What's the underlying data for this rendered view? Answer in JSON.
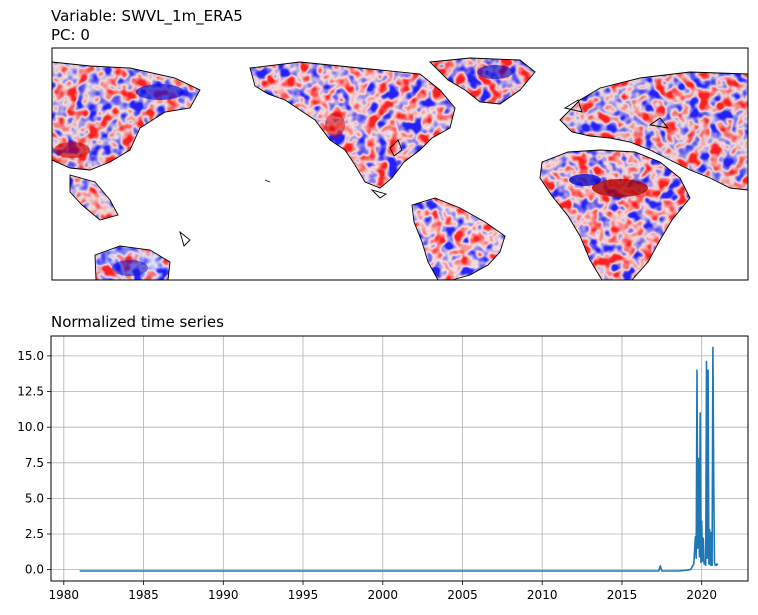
{
  "map_panel": {
    "title_variable": "Variable: SWVL_1m_ERA5",
    "title_pc": "PC: 0",
    "colormap": "bwr",
    "colors": {
      "negative": "#0000ff",
      "neutral": "#ffffff",
      "positive": "#ff0000",
      "coastline": "#000000"
    }
  },
  "chart_data": {
    "type": "line",
    "title": "Normalized time series",
    "xlabel": "",
    "ylabel": "",
    "xlim": [
      1979.2,
      2022.9
    ],
    "ylim": [
      -0.8,
      16.4
    ],
    "grid": true,
    "x_ticks": [
      1980,
      1985,
      1990,
      1995,
      2000,
      2005,
      2010,
      2015,
      2020
    ],
    "x_tick_labels": [
      "1980",
      "1985",
      "1990",
      "1995",
      "2000",
      "2005",
      "2010",
      "2015",
      "2020"
    ],
    "y_ticks": [
      0.0,
      2.5,
      5.0,
      7.5,
      10.0,
      12.5,
      15.0
    ],
    "y_tick_labels": [
      "0.0",
      "2.5",
      "5.0",
      "7.5",
      "10.0",
      "12.5",
      "15.0"
    ],
    "series": [
      {
        "color": "#1f77b4",
        "x": [
          1981.0,
          1985.0,
          1990.0,
          1995.0,
          2000.0,
          2005.0,
          2010.0,
          2015.0,
          2017.3,
          2017.4,
          2017.5,
          2017.6,
          2018.5,
          2019.0,
          2019.3,
          2019.5,
          2019.6,
          2019.65,
          2019.7,
          2019.75,
          2019.8,
          2019.85,
          2019.9,
          2019.95,
          2020.0,
          2020.05,
          2020.1,
          2020.15,
          2020.2,
          2020.25,
          2020.3,
          2020.35,
          2020.4,
          2020.45,
          2020.5,
          2020.55,
          2020.6,
          2020.65,
          2020.7,
          2020.75,
          2020.8,
          2020.85,
          2020.9,
          2020.95,
          2021.0
        ],
        "y": [
          -0.1,
          -0.1,
          -0.1,
          -0.1,
          -0.1,
          -0.1,
          -0.1,
          -0.1,
          -0.1,
          0.25,
          -0.1,
          -0.1,
          -0.1,
          -0.05,
          0.0,
          0.4,
          2.3,
          0.8,
          14.0,
          1.5,
          7.8,
          0.9,
          11.0,
          0.5,
          3.4,
          0.6,
          2.2,
          0.4,
          0.5,
          0.3,
          14.6,
          0.8,
          14.0,
          0.4,
          2.8,
          0.3,
          2.6,
          0.3,
          15.6,
          6.3,
          0.5,
          0.3,
          0.3,
          0.4,
          0.3
        ]
      }
    ]
  }
}
